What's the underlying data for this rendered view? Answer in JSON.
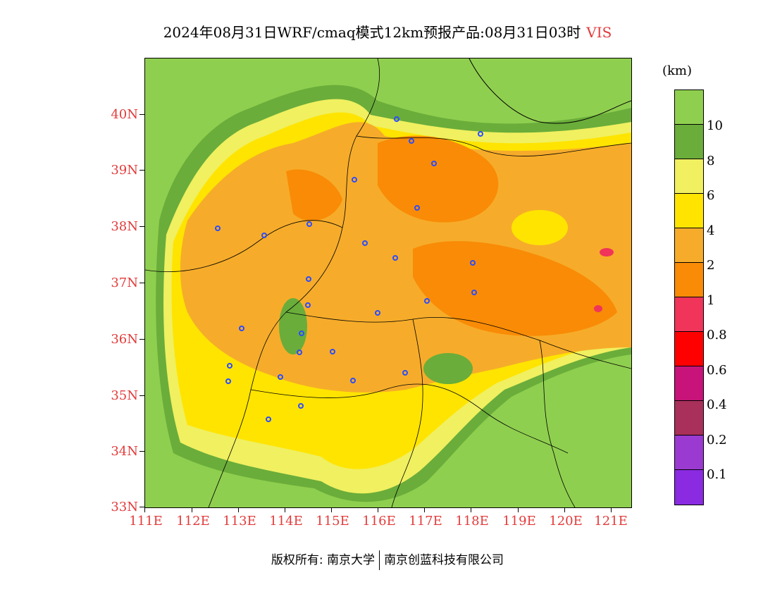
{
  "title": {
    "main": "2024年08月31日WRF/cmaq模式12km预报产品:08月31日03时",
    "variable": "VIS"
  },
  "axes": {
    "y_ticks": [
      "40N",
      "39N",
      "38N",
      "37N",
      "36N",
      "35N",
      "34N",
      "33N"
    ],
    "x_ticks": [
      "111E",
      "112E",
      "113E",
      "114E",
      "115E",
      "116E",
      "117E",
      "118E",
      "119E",
      "120E",
      "121E"
    ]
  },
  "legend": {
    "unit": "(km)",
    "colors": [
      "#8fcf4f",
      "#6aad3a",
      "#f0f060",
      "#ffe400",
      "#f6ac2a",
      "#f98b06",
      "#f0345a",
      "#ff0000",
      "#c8147a",
      "#a9305a",
      "#9b3ad0",
      "#8a2be2"
    ],
    "labels": [
      "10",
      "8",
      "6",
      "4",
      "2",
      "1",
      "0.8",
      "0.6",
      "0.4",
      "0.2",
      "0.1"
    ]
  },
  "footer": {
    "copyright": "版权所有: 南京大学",
    "company": "南京创蓝科技有限公司"
  },
  "colors": {
    "axis_label": "#e23b3b",
    "station_marker": "#2b4cff"
  }
}
